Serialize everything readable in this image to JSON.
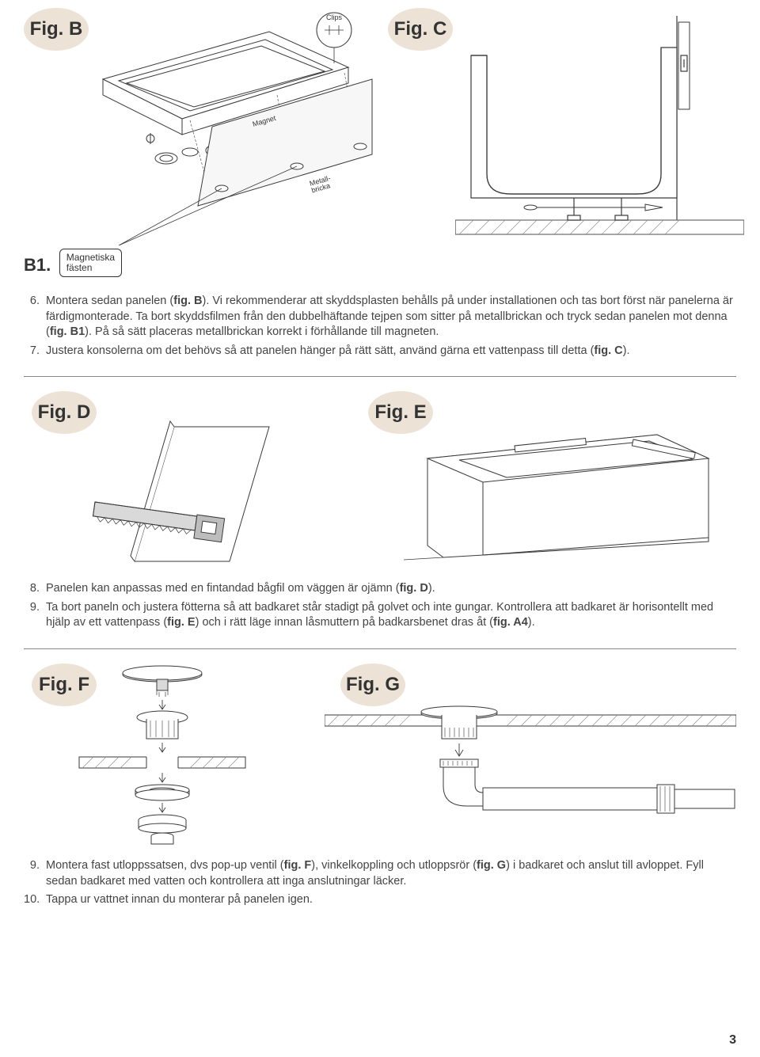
{
  "page_number": "3",
  "colors": {
    "label_bg": "#ece3d6",
    "text": "#333333",
    "line": "#3a3a3a",
    "light_fill": "#ffffff",
    "grey_fill": "#d9d9d9",
    "hatch": "#888888"
  },
  "labels": {
    "figB": "Fig. B",
    "figC": "Fig. C",
    "figD": "Fig. D",
    "figE": "Fig. E",
    "figF": "Fig. F",
    "figG": "Fig. G",
    "b1": "B1.",
    "b1_text": "Magnetiska fästen",
    "clips": "Clips",
    "magnet": "Magnet",
    "metallbricka": "Metall-\nbricka"
  },
  "instructions_block1": [
    {
      "num": "6.",
      "parts": [
        {
          "t": "Montera sedan panelen ("
        },
        {
          "t": "fig. B",
          "b": true
        },
        {
          "t": "). Vi rekommenderar att skyddsplasten behålls på under installationen och tas bort först när panelerna är färdigmonterade. Ta bort skyddsfilmen från den dubbelhäftande tejpen som sitter på metallbrickan och tryck sedan panelen mot denna ("
        },
        {
          "t": "fig. B1",
          "b": true
        },
        {
          "t": "). På så sätt placeras metallbrickan korrekt i förhållande till magneten."
        }
      ]
    },
    {
      "num": "7.",
      "parts": [
        {
          "t": "Justera konsolerna om det behövs så att panelen hänger på rätt sätt, använd gärna ett vattenpass till detta ("
        },
        {
          "t": "fig. C",
          "b": true
        },
        {
          "t": ")."
        }
      ]
    }
  ],
  "instructions_block2": [
    {
      "num": "8.",
      "parts": [
        {
          "t": "Panelen kan anpassas med en fintandad bågfil om väggen är ojämn ("
        },
        {
          "t": "fig. D",
          "b": true
        },
        {
          "t": ")."
        }
      ]
    },
    {
      "num": "9.",
      "parts": [
        {
          "t": "Ta bort paneln och justera fötterna så att badkaret står stadigt på golvet och inte gungar. Kontrollera att badkaret är horisontellt med hjälp av ett vattenpass ("
        },
        {
          "t": "fig. E",
          "b": true
        },
        {
          "t": ") och i rätt läge innan låsmuttern på badkarsbenet dras åt ("
        },
        {
          "t": "fig. A4",
          "b": true
        },
        {
          "t": ")."
        }
      ]
    }
  ],
  "instructions_block3": [
    {
      "num": "9.",
      "parts": [
        {
          "t": "Montera fast utloppssatsen, dvs pop-up ventil ("
        },
        {
          "t": "fig. F",
          "b": true
        },
        {
          "t": "), vinkelkoppling och utloppsrör ("
        },
        {
          "t": "fig. G",
          "b": true
        },
        {
          "t": ") i badkaret och anslut till avloppet. Fyll sedan badkaret med vatten och kontrollera att inga anslutningar läcker."
        }
      ]
    },
    {
      "num": "10.",
      "parts": [
        {
          "t": "Tappa ur vattnet innan du monterar på panelen igen."
        }
      ]
    }
  ]
}
